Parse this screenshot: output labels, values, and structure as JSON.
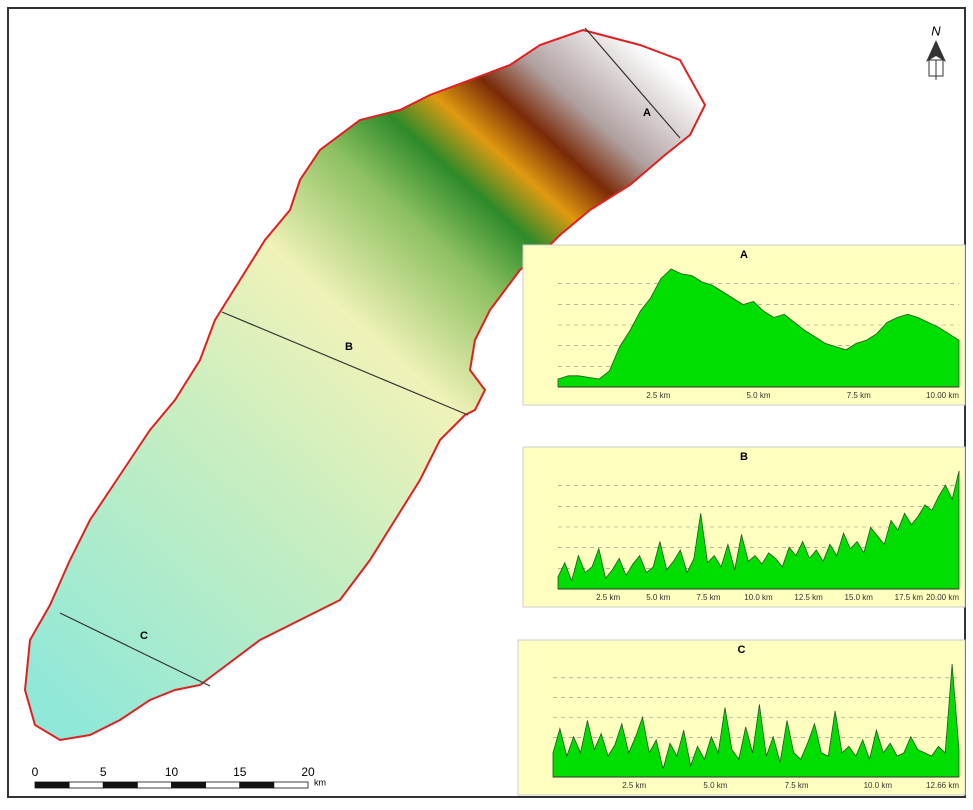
{
  "map": {
    "section_labels": [
      "A",
      "B",
      "C"
    ],
    "scale_bar": {
      "ticks": [
        "0",
        "5",
        "10",
        "15",
        "20"
      ],
      "unit": "km"
    },
    "north_label": "N"
  },
  "profiles": [
    {
      "title": "A",
      "xticks": [
        "2.5 km",
        "5.0 km",
        "7.5 km",
        "10.00 km"
      ],
      "values": [
        20,
        22,
        22,
        21,
        20,
        25,
        40,
        50,
        62,
        70,
        82,
        88,
        85,
        84,
        80,
        78,
        74,
        70,
        66,
        68,
        62,
        58,
        60,
        55,
        50,
        46,
        42,
        40,
        38,
        42,
        44,
        48,
        55,
        58,
        60,
        58,
        55,
        52,
        48,
        44
      ]
    },
    {
      "title": "B",
      "xticks": [
        "2.5 km",
        "5.0 km",
        "7.5 km",
        "10.0 km",
        "12.5 km",
        "15.0 km",
        "17.5 km",
        "20.00 km"
      ],
      "values": [
        15,
        25,
        12,
        30,
        18,
        22,
        35,
        14,
        20,
        28,
        16,
        24,
        30,
        18,
        22,
        40,
        20,
        26,
        34,
        18,
        28,
        60,
        25,
        30,
        22,
        38,
        20,
        45,
        26,
        30,
        24,
        32,
        28,
        22,
        36,
        30,
        40,
        28,
        34,
        26,
        38,
        30,
        46,
        35,
        40,
        32,
        50,
        44,
        38,
        55,
        48,
        60,
        52,
        58,
        66,
        62,
        72,
        80,
        70,
        90
      ]
    },
    {
      "title": "C",
      "xticks": [
        "2.5 km",
        "5.0 km",
        "7.5 km",
        "10.0 km",
        "12.66 km"
      ],
      "values": [
        30,
        45,
        28,
        40,
        30,
        50,
        32,
        42,
        28,
        35,
        48,
        30,
        40,
        52,
        30,
        38,
        20,
        36,
        28,
        44,
        22,
        34,
        26,
        40,
        30,
        58,
        32,
        26,
        46,
        30,
        60,
        28,
        40,
        24,
        50,
        30,
        26,
        36,
        48,
        30,
        28,
        56,
        30,
        34,
        28,
        38,
        26,
        44,
        30,
        36,
        28,
        30,
        40,
        32,
        30,
        28,
        34,
        30,
        85,
        32
      ]
    }
  ]
}
